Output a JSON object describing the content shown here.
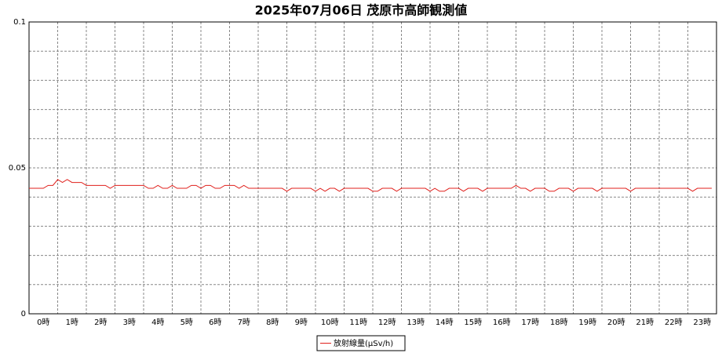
{
  "chart_data": {
    "type": "line",
    "title": "2025年07月06日 茂原市高師観測値",
    "categories": [
      "0時",
      "1時",
      "2時",
      "3時",
      "4時",
      "5時",
      "6時",
      "7時",
      "8時",
      "9時",
      "10時",
      "11時",
      "12時",
      "13時",
      "14時",
      "15時",
      "16時",
      "17時",
      "18時",
      "19時",
      "20時",
      "21時",
      "22時",
      "23時"
    ],
    "x": [
      0,
      10,
      20,
      30,
      40,
      50,
      60,
      70,
      80,
      90,
      100,
      110,
      120,
      130,
      140,
      150,
      160,
      170,
      180,
      190,
      200,
      210,
      220,
      230,
      240,
      250,
      260,
      270,
      280,
      290,
      300,
      310,
      320,
      330,
      340,
      350,
      360,
      370,
      380,
      390,
      400,
      410,
      420,
      430,
      440,
      450,
      460,
      470,
      480,
      490,
      500,
      510,
      520,
      530,
      540,
      550,
      560,
      570,
      580,
      590,
      600,
      610,
      620,
      630,
      640,
      650,
      660,
      670,
      680,
      690,
      700,
      710,
      720,
      730,
      740,
      750,
      760,
      770,
      780,
      790,
      800,
      810,
      820,
      830,
      840,
      850,
      860,
      870,
      880,
      890,
      900,
      910,
      920,
      930,
      940,
      950,
      960,
      970,
      980,
      990,
      1000,
      1010,
      1020,
      1030,
      1040,
      1050,
      1060,
      1070,
      1080,
      1090,
      1100,
      1110,
      1120,
      1130,
      1140,
      1150,
      1160,
      1170,
      1180,
      1190,
      1200,
      1210,
      1220,
      1230,
      1240,
      1250,
      1260,
      1270,
      1280,
      1290,
      1300,
      1310,
      1320,
      1330,
      1340,
      1350,
      1360,
      1370,
      1380,
      1390,
      1400,
      1410,
      1420,
      1430
    ],
    "xlim": [
      0,
      1440
    ],
    "xticks": [
      0,
      60,
      120,
      180,
      240,
      300,
      360,
      420,
      480,
      540,
      600,
      660,
      720,
      780,
      840,
      900,
      960,
      1020,
      1080,
      1140,
      1200,
      1260,
      1320,
      1380,
      1440
    ],
    "series": [
      {
        "name": "放射線量(μSv/h)",
        "color": "#e0201c",
        "values": [
          0.043,
          0.043,
          0.043,
          0.043,
          0.044,
          0.044,
          0.046,
          0.045,
          0.046,
          0.045,
          0.045,
          0.045,
          0.044,
          0.044,
          0.044,
          0.044,
          0.044,
          0.043,
          0.044,
          0.044,
          0.044,
          0.044,
          0.044,
          0.044,
          0.044,
          0.043,
          0.043,
          0.044,
          0.043,
          0.043,
          0.044,
          0.043,
          0.043,
          0.043,
          0.044,
          0.044,
          0.043,
          0.044,
          0.044,
          0.043,
          0.043,
          0.044,
          0.044,
          0.044,
          0.043,
          0.044,
          0.043,
          0.043,
          0.043,
          0.043,
          0.043,
          0.043,
          0.043,
          0.043,
          0.042,
          0.043,
          0.043,
          0.043,
          0.043,
          0.043,
          0.042,
          0.043,
          0.042,
          0.043,
          0.043,
          0.042,
          0.043,
          0.043,
          0.043,
          0.043,
          0.043,
          0.043,
          0.042,
          0.042,
          0.043,
          0.043,
          0.043,
          0.042,
          0.043,
          0.043,
          0.043,
          0.043,
          0.043,
          0.043,
          0.042,
          0.043,
          0.042,
          0.042,
          0.043,
          0.043,
          0.043,
          0.042,
          0.043,
          0.043,
          0.043,
          0.042,
          0.043,
          0.043,
          0.043,
          0.043,
          0.043,
          0.043,
          0.044,
          0.043,
          0.043,
          0.042,
          0.043,
          0.043,
          0.043,
          0.042,
          0.042,
          0.043,
          0.043,
          0.043,
          0.042,
          0.043,
          0.043,
          0.043,
          0.043,
          0.042,
          0.043,
          0.043,
          0.043,
          0.043,
          0.043,
          0.043,
          0.042,
          0.043,
          0.043,
          0.043,
          0.043,
          0.043,
          0.043,
          0.043,
          0.043,
          0.043,
          0.043,
          0.043,
          0.043,
          0.042,
          0.043,
          0.043,
          0.043,
          0.043
        ]
      }
    ],
    "ylim": [
      0,
      0.1
    ],
    "yticks": [
      0,
      0.05,
      0.1
    ],
    "minor_yticks": [
      0.01,
      0.02,
      0.03,
      0.04,
      0.06,
      0.07,
      0.08,
      0.09
    ],
    "grid": true,
    "legend": "bottom"
  }
}
